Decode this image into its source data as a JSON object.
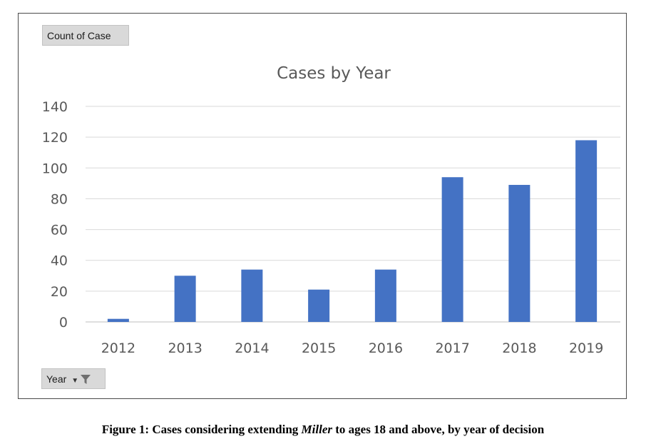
{
  "pivot": {
    "value_field": "Count of Case",
    "axis_field": "Year"
  },
  "chart_data": {
    "type": "bar",
    "title": "Cases by Year",
    "categories": [
      "2012",
      "2013",
      "2014",
      "2015",
      "2016",
      "2017",
      "2018",
      "2019"
    ],
    "values": [
      2,
      30,
      34,
      21,
      34,
      94,
      89,
      118
    ],
    "xlabel": "",
    "ylabel": "",
    "ylim": [
      0,
      140
    ],
    "yticks": [
      0,
      20,
      40,
      60,
      80,
      100,
      120,
      140
    ],
    "grid": true,
    "legend": "none",
    "bar_color": "#4472C4"
  },
  "caption": {
    "prefix": "Figure 1: Cases considering extending ",
    "emphasis": "Miller",
    "suffix": " to ages 18 and above, by year of decision"
  }
}
